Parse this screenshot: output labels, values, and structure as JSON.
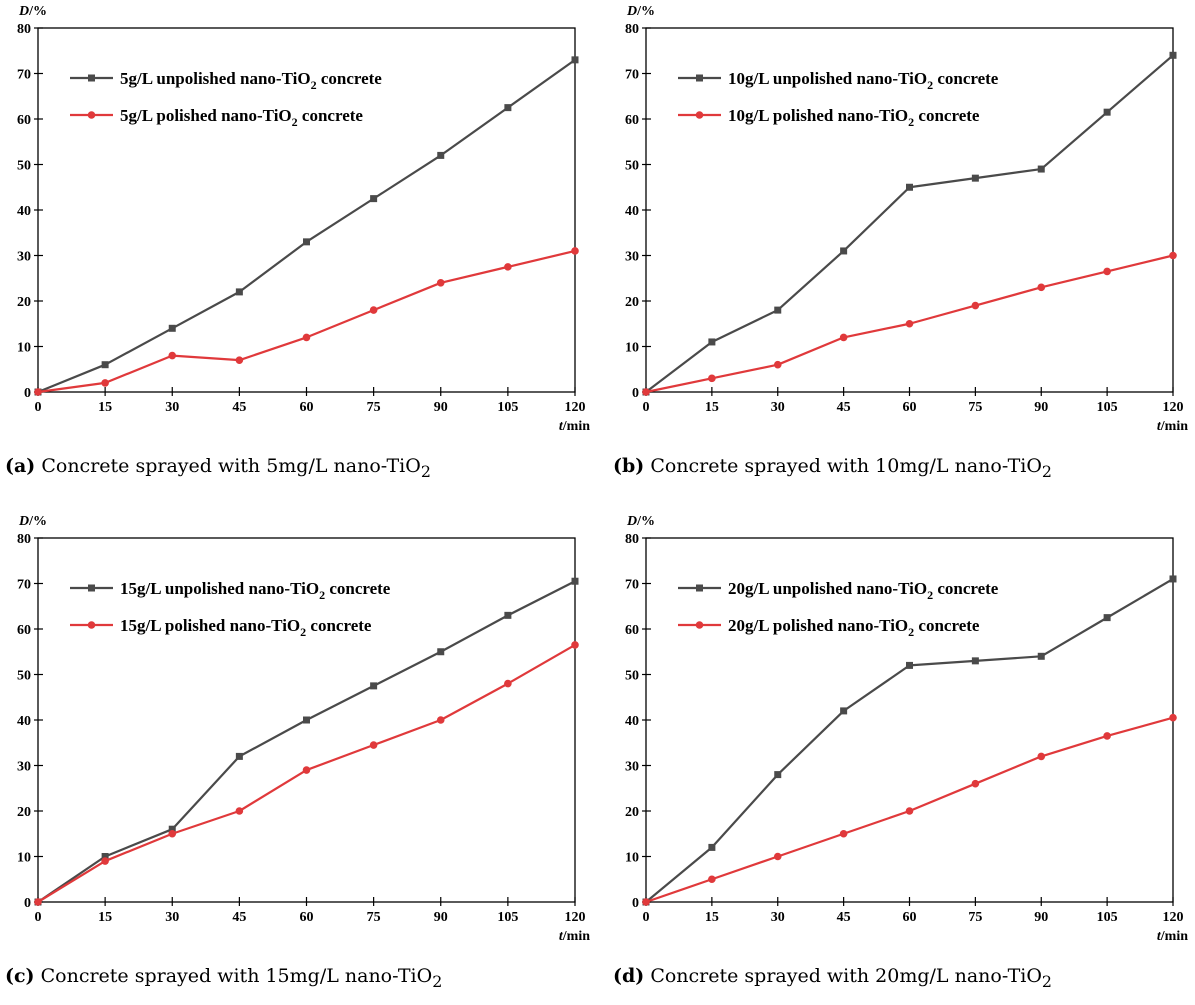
{
  "colors": {
    "unpolished": "#4a4a4a",
    "polished": "#e0393b",
    "axis": "#000000"
  },
  "axis": {
    "ylabel_main": "D",
    "ylabel_unit": "/%",
    "xlabel_main": "t",
    "xlabel_unit": "/min"
  },
  "chart_data": [
    {
      "type": "line",
      "panel_letter": "(a)",
      "caption_text": "Concrete sprayed with 5mg/L nano-TiO",
      "caption_sub": "2",
      "ylabel": "D/%",
      "xlabel": "t/min",
      "x": [
        0,
        15,
        30,
        45,
        60,
        75,
        90,
        105,
        120
      ],
      "xlim": [
        0,
        120
      ],
      "ylim": [
        0,
        80
      ],
      "xticks": [
        "0",
        "15",
        "30",
        "45",
        "60",
        "75",
        "90",
        "105",
        "120"
      ],
      "yticks": [
        "0",
        "10",
        "20",
        "30",
        "40",
        "50",
        "60",
        "70",
        "80"
      ],
      "series": [
        {
          "name": "5g/L unpolished nano-TiO2 concrete",
          "legend_pre": "5g/L unpolished nano-TiO",
          "legend_sub": "2",
          "legend_post": " concrete",
          "marker": "square",
          "values": [
            0,
            6,
            14,
            22,
            33,
            42.5,
            52,
            62.5,
            73
          ]
        },
        {
          "name": "5g/L polished nano-TiO2 concrete",
          "legend_pre": "5g/L polished nano-TiO",
          "legend_sub": "2",
          "legend_post": " concrete",
          "marker": "circle",
          "values": [
            0,
            2,
            8,
            7,
            12,
            18,
            24,
            27.5,
            31
          ]
        }
      ]
    },
    {
      "type": "line",
      "panel_letter": "(b)",
      "caption_text": "Concrete sprayed with 10mg/L nano-TiO",
      "caption_sub": "2",
      "ylabel": "D/%",
      "xlabel": "t/min",
      "x": [
        0,
        15,
        30,
        45,
        60,
        75,
        90,
        105,
        120
      ],
      "xlim": [
        0,
        120
      ],
      "ylim": [
        0,
        80
      ],
      "xticks": [
        "0",
        "15",
        "30",
        "45",
        "60",
        "75",
        "90",
        "105",
        "120"
      ],
      "yticks": [
        "0",
        "10",
        "20",
        "30",
        "40",
        "50",
        "60",
        "70",
        "80"
      ],
      "series": [
        {
          "name": "10g/L unpolished nano-TiO2 concrete",
          "legend_pre": "10g/L unpolished nano-TiO",
          "legend_sub": "2",
          "legend_post": " concrete",
          "marker": "square",
          "values": [
            0,
            11,
            18,
            31,
            45,
            47,
            49,
            61.5,
            74
          ]
        },
        {
          "name": "10g/L polished nano-TiO2 concrete",
          "legend_pre": "10g/L polished nano-TiO",
          "legend_sub": "2",
          "legend_post": " concrete",
          "marker": "circle",
          "values": [
            0,
            3,
            6,
            12,
            15,
            19,
            23,
            26.5,
            30
          ]
        }
      ]
    },
    {
      "type": "line",
      "panel_letter": "(c)",
      "caption_text": "Concrete sprayed with 15mg/L nano-TiO",
      "caption_sub": "2",
      "ylabel": "D/%",
      "xlabel": "t/min",
      "x": [
        0,
        15,
        30,
        45,
        60,
        75,
        90,
        105,
        120
      ],
      "xlim": [
        0,
        120
      ],
      "ylim": [
        0,
        80
      ],
      "xticks": [
        "0",
        "15",
        "30",
        "45",
        "60",
        "75",
        "90",
        "105",
        "120"
      ],
      "yticks": [
        "0",
        "10",
        "20",
        "30",
        "40",
        "50",
        "60",
        "70",
        "80"
      ],
      "series": [
        {
          "name": "15g/L unpolished nano-TiO2 concrete",
          "legend_pre": "15g/L unpolished nano-TiO",
          "legend_sub": "2",
          "legend_post": " concrete",
          "marker": "square",
          "values": [
            0,
            10,
            16,
            32,
            40,
            47.5,
            55,
            63,
            70.5
          ]
        },
        {
          "name": "15g/L polished nano-TiO2 concrete",
          "legend_pre": "15g/L polished nano-TiO",
          "legend_sub": "2",
          "legend_post": " concrete",
          "marker": "circle",
          "values": [
            0,
            9,
            15,
            20,
            29,
            34.5,
            40,
            48,
            56.5
          ]
        }
      ]
    },
    {
      "type": "line",
      "panel_letter": "(d)",
      "caption_text": "Concrete sprayed with 20mg/L nano-TiO",
      "caption_sub": "2",
      "ylabel": "D/%",
      "xlabel": "t/min",
      "x": [
        0,
        15,
        30,
        45,
        60,
        75,
        90,
        105,
        120
      ],
      "xlim": [
        0,
        120
      ],
      "ylim": [
        0,
        80
      ],
      "xticks": [
        "0",
        "15",
        "30",
        "45",
        "60",
        "75",
        "90",
        "105",
        "120"
      ],
      "yticks": [
        "0",
        "10",
        "20",
        "30",
        "40",
        "50",
        "60",
        "70",
        "80"
      ],
      "series": [
        {
          "name": "20g/L unpolished nano-TiO2 concrete",
          "legend_pre": "20g/L unpolished nano-TiO",
          "legend_sub": "2",
          "legend_post": " concrete",
          "marker": "square",
          "values": [
            0,
            12,
            28,
            42,
            52,
            53,
            54,
            62.5,
            71
          ]
        },
        {
          "name": "20g/L polished nano-TiO2 concrete",
          "legend_pre": "20g/L polished nano-TiO",
          "legend_sub": "2",
          "legend_post": " concrete",
          "marker": "circle",
          "values": [
            0,
            5,
            10,
            15,
            20,
            26,
            32,
            36.5,
            40.5
          ]
        }
      ]
    }
  ]
}
